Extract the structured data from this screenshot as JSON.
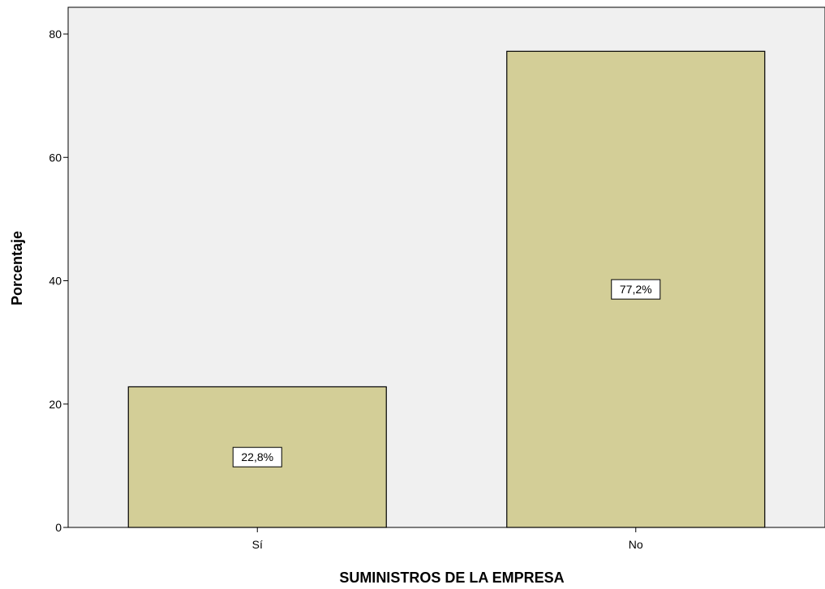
{
  "chart_data": {
    "type": "bar",
    "categories": [
      "Sí",
      "No"
    ],
    "values": [
      22.8,
      77.2
    ],
    "data_labels": [
      "22,8%",
      "77,2%"
    ],
    "title": "",
    "xlabel": "SUMINISTROS DE LA EMPRESA",
    "ylabel": "Porcentaje",
    "ylim": [
      0,
      80
    ],
    "yticks": [
      0,
      20,
      40,
      60,
      80
    ],
    "grid": false,
    "colors": {
      "plot_background": "#f0f0f0",
      "bar_fill": "#d3ce97",
      "bar_stroke": "#000000"
    }
  }
}
